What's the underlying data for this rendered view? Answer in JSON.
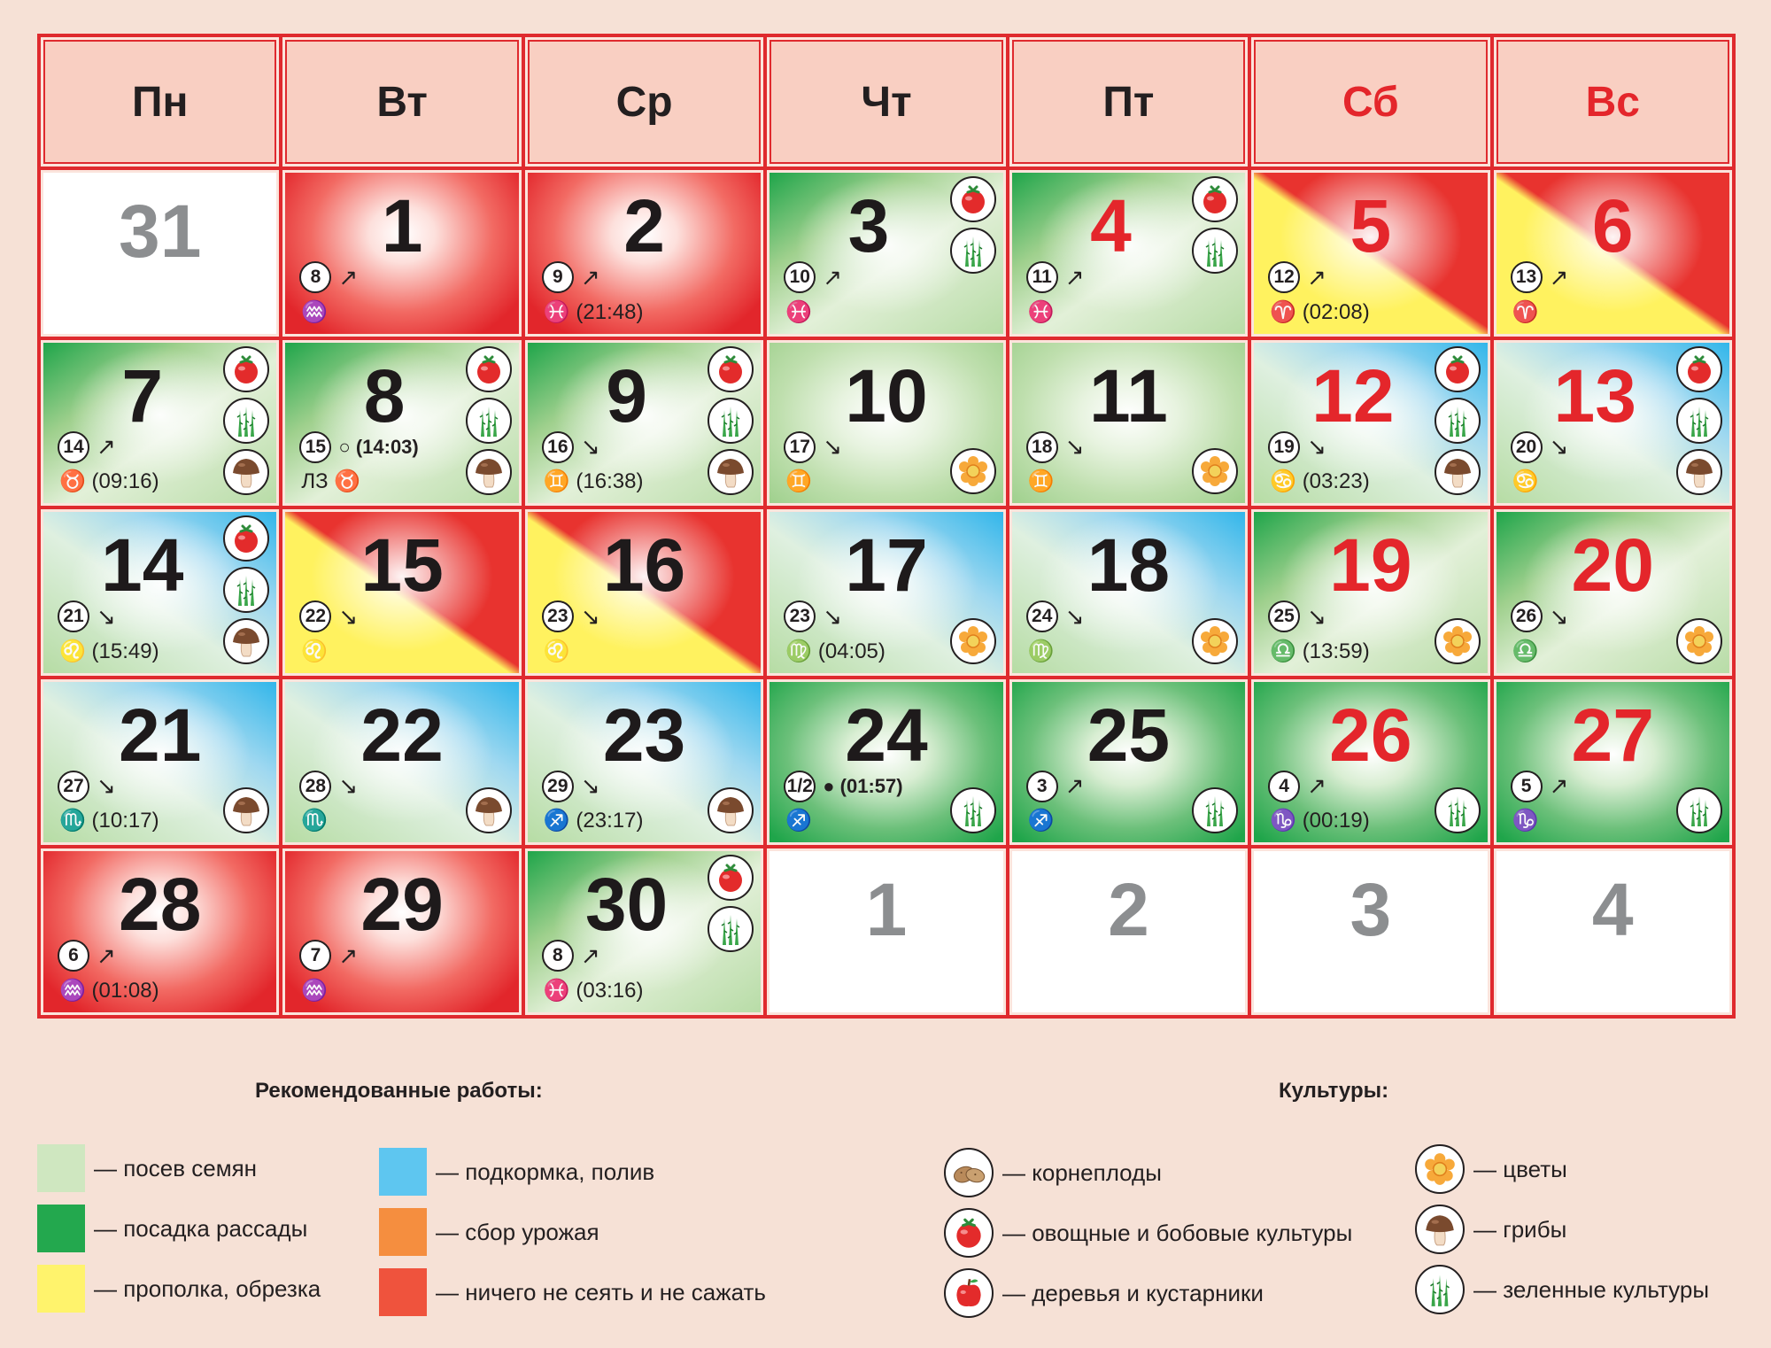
{
  "colors": {
    "sowing": "#cfe7c0",
    "seedlings": "#23a84e",
    "weeding": "#fff36c",
    "feeding": "#5ec6f0",
    "harvest": "#f58e3f",
    "nothing": "#ef533d"
  },
  "weekdays": [
    {
      "label": "Пн",
      "weekend": false
    },
    {
      "label": "Вт",
      "weekend": false
    },
    {
      "label": "Ср",
      "weekend": false
    },
    {
      "label": "Чт",
      "weekend": false
    },
    {
      "label": "Пт",
      "weekend": false
    },
    {
      "label": "Сб",
      "weekend": true
    },
    {
      "label": "Вс",
      "weekend": true
    }
  ],
  "days": [
    {
      "n": "31",
      "empty": true
    },
    {
      "n": "1",
      "bg": "red",
      "md": "8",
      "arrow": "↗",
      "zodiac": "♒"
    },
    {
      "n": "2",
      "bg": "red",
      "md": "9",
      "arrow": "↗",
      "zodiac": "♓ (21:48)"
    },
    {
      "n": "3",
      "bg": "diag-g",
      "md": "10",
      "arrow": "↗",
      "zodiac": "♓",
      "icons": [
        "tomato",
        "greens"
      ]
    },
    {
      "n": "4",
      "bg": "diag-g",
      "md": "11",
      "arrow": "↗",
      "zodiac": "♓",
      "icons": [
        "tomato",
        "greens"
      ],
      "weekendNum": true
    },
    {
      "n": "5",
      "bg": "diag-y",
      "md": "12",
      "arrow": "↗",
      "zodiac": "♈ (02:08)",
      "weekendNum": true
    },
    {
      "n": "6",
      "bg": "diag-y",
      "md": "13",
      "arrow": "↗",
      "zodiac": "♈",
      "weekendNum": true
    },
    {
      "n": "7",
      "bg": "diag-g",
      "md": "14",
      "arrow": "↗",
      "zodiac": "♉ (09:16)",
      "icons": [
        "tomato",
        "greens",
        "mushroom"
      ]
    },
    {
      "n": "8",
      "bg": "diag-g",
      "md": "15",
      "arrow": "",
      "phase": "○ (14:03)",
      "zodiac": "ЛЗ ♉",
      "icons": [
        "tomato",
        "greens",
        "mushroom"
      ]
    },
    {
      "n": "9",
      "bg": "diag-g",
      "md": "16",
      "arrow": "↘",
      "zodiac": "♊ (16:38)",
      "icons": [
        "tomato",
        "greens",
        "mushroom"
      ]
    },
    {
      "n": "10",
      "bg": "green",
      "md": "17",
      "arrow": "↘",
      "zodiac": "♊",
      "icons": [
        "flower"
      ],
      "iconsBottom": true
    },
    {
      "n": "11",
      "bg": "green",
      "md": "18",
      "arrow": "↘",
      "zodiac": "♊",
      "icons": [
        "flower"
      ],
      "iconsBottom": true
    },
    {
      "n": "12",
      "bg": "diag-b",
      "md": "19",
      "arrow": "↘",
      "zodiac": "♋ (03:23)",
      "icons": [
        "tomato",
        "greens",
        "mushroom"
      ],
      "weekendNum": true
    },
    {
      "n": "13",
      "bg": "diag-b",
      "md": "20",
      "arrow": "↘",
      "zodiac": "♋",
      "icons": [
        "tomato",
        "greens",
        "mushroom"
      ],
      "weekendNum": true
    },
    {
      "n": "14",
      "bg": "diag-b",
      "md": "21",
      "arrow": "↘",
      "zodiac": "♌ (15:49)",
      "icons": [
        "tomato",
        "greens",
        "mushroom"
      ]
    },
    {
      "n": "15",
      "bg": "diag-y",
      "md": "22",
      "arrow": "↘",
      "zodiac": "♌"
    },
    {
      "n": "16",
      "bg": "diag-y",
      "md": "23",
      "arrow": "↘",
      "zodiac": "♌"
    },
    {
      "n": "17",
      "bg": "diag-b",
      "md": "23",
      "arrow": "↘",
      "zodiac": "♍ (04:05)",
      "icons": [
        "flower"
      ],
      "iconsBottom": true
    },
    {
      "n": "18",
      "bg": "diag-b",
      "md": "24",
      "arrow": "↘",
      "zodiac": "♍",
      "icons": [
        "flower"
      ],
      "iconsBottom": true
    },
    {
      "n": "19",
      "bg": "diag-g",
      "md": "25",
      "arrow": "↘",
      "zodiac": "♎ (13:59)",
      "icons": [
        "flower"
      ],
      "iconsBottom": true,
      "weekendNum": true
    },
    {
      "n": "20",
      "bg": "diag-g",
      "md": "26",
      "arrow": "↘",
      "zodiac": "♎",
      "icons": [
        "flower"
      ],
      "iconsBottom": true,
      "weekendNum": true
    },
    {
      "n": "21",
      "bg": "diag-b",
      "md": "27",
      "arrow": "↘",
      "zodiac": "♏ (10:17)",
      "icons": [
        "mushroom"
      ],
      "iconsBottom": true
    },
    {
      "n": "22",
      "bg": "diag-b",
      "md": "28",
      "arrow": "↘",
      "zodiac": "♏",
      "icons": [
        "mushroom"
      ],
      "iconsBottom": true
    },
    {
      "n": "23",
      "bg": "diag-b",
      "md": "29",
      "arrow": "↘",
      "zodiac": "♐ (23:17)",
      "icons": [
        "mushroom"
      ],
      "iconsBottom": true
    },
    {
      "n": "24",
      "bg": "dkgreen",
      "md": "1/2",
      "arrow": "",
      "phase": "● (01:57)",
      "zodiac": "♐",
      "icons": [
        "greens"
      ],
      "iconsBottom": true
    },
    {
      "n": "25",
      "bg": "dkgreen",
      "md": "3",
      "arrow": "↗",
      "zodiac": "♐",
      "icons": [
        "greens"
      ],
      "iconsBottom": true
    },
    {
      "n": "26",
      "bg": "dkgreen",
      "md": "4",
      "arrow": "↗",
      "zodiac": "♑ (00:19)",
      "icons": [
        "greens"
      ],
      "iconsBottom": true,
      "weekendNum": true
    },
    {
      "n": "27",
      "bg": "dkgreen",
      "md": "5",
      "arrow": "↗",
      "zodiac": "♑",
      "icons": [
        "greens"
      ],
      "iconsBottom": true,
      "weekendNum": true
    },
    {
      "n": "28",
      "bg": "red",
      "md": "6",
      "arrow": "↗",
      "zodiac": "♒ (01:08)"
    },
    {
      "n": "29",
      "bg": "red",
      "md": "7",
      "arrow": "↗",
      "zodiac": "♒"
    },
    {
      "n": "30",
      "bg": "diag-g",
      "md": "8",
      "arrow": "↗",
      "zodiac": "♓ (03:16)",
      "icons": [
        "tomato",
        "greens"
      ]
    },
    {
      "n": "1",
      "empty": true
    },
    {
      "n": "2",
      "empty": true
    },
    {
      "n": "3",
      "empty": true
    },
    {
      "n": "4",
      "empty": true
    }
  ],
  "legend": {
    "works_title": "Рекомендованные работы:",
    "crops_title": "Культуры:",
    "works": [
      {
        "label": "— посев семян",
        "color": "#cfe7c0"
      },
      {
        "label": "— посадка рассады",
        "color": "#23a84e"
      },
      {
        "label": "— прополка, обрезка",
        "color": "#fff36c"
      },
      {
        "label": "— подкормка, полив",
        "color": "#5ec6f0"
      },
      {
        "label": "— сбор урожая",
        "color": "#f58e3f"
      },
      {
        "label": "— ничего не сеять и не сажать",
        "color": "#ef533d"
      }
    ],
    "crops": [
      {
        "label": "— корнеплоды",
        "icon": "potato"
      },
      {
        "label": "— овощные и бобовые культуры",
        "icon": "tomato"
      },
      {
        "label": "— деревья и кустарники",
        "icon": "apple"
      },
      {
        "label": "— цветы",
        "icon": "flower"
      },
      {
        "label": "— грибы",
        "icon": "mushroom"
      },
      {
        "label": "— зеленные культуры",
        "icon": "greens"
      }
    ]
  }
}
